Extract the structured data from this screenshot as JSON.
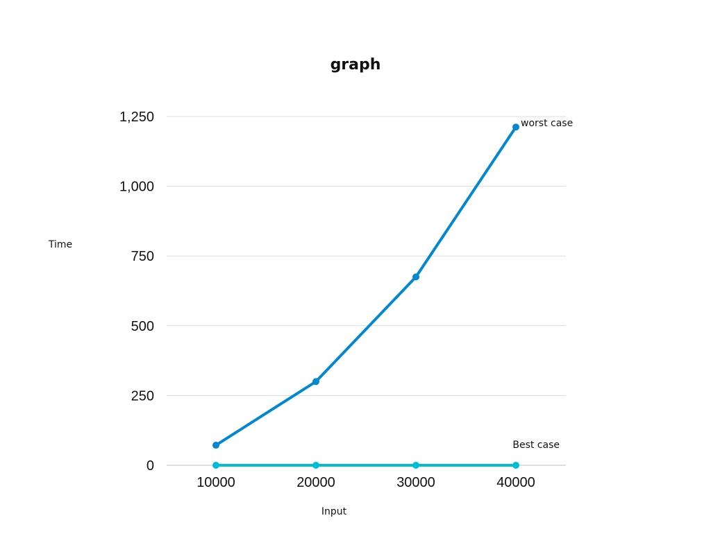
{
  "chart_data": {
    "type": "line",
    "title": "graph",
    "xlabel": "Input",
    "ylabel": "Time",
    "x": [
      "10000",
      "20000",
      "30000",
      "40000"
    ],
    "ylim": [
      0,
      1250
    ],
    "yticks": [
      0,
      250,
      500,
      750,
      1000,
      1250
    ],
    "ytick_labels": [
      "0",
      "250",
      "500",
      "750",
      "1,000",
      "1,250"
    ],
    "grid": true,
    "legend": "none",
    "series": [
      {
        "name": "worst case",
        "color": "#0288d1",
        "values": [
          72,
          300,
          675,
          1212
        ]
      },
      {
        "name": "Best case",
        "color": "#00bcd4",
        "values": [
          0,
          0,
          0,
          0
        ]
      }
    ]
  }
}
